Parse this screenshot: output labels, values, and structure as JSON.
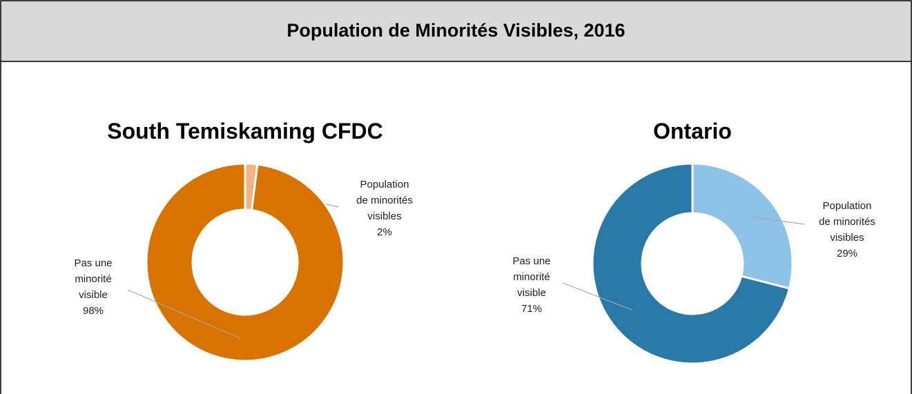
{
  "header": {
    "title": "Population de Minorités Visibles, 2016"
  },
  "chart_data": [
    {
      "type": "donut",
      "title": "South Temiskaming CFDC",
      "categories": [
        "Population de minorités visibles",
        "Pas une minorité visible"
      ],
      "values": [
        2,
        98
      ],
      "value_labels": [
        "2%",
        "98%"
      ],
      "colors": [
        "#f4b183",
        "#d87200"
      ]
    },
    {
      "type": "donut",
      "title": "Ontario",
      "categories": [
        "Population de minorités visibles",
        "Pas une minorité visible"
      ],
      "values": [
        29,
        71
      ],
      "value_labels": [
        "29%",
        "71%"
      ],
      "colors": [
        "#8dc3e6",
        "#2878a8"
      ]
    }
  ]
}
